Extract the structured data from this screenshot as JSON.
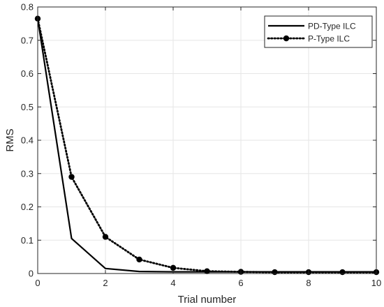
{
  "chart_data": {
    "type": "line",
    "xlabel": "Trial number",
    "ylabel": "RMS",
    "xlim": [
      0,
      10
    ],
    "ylim": [
      0,
      0.8
    ],
    "xticks": [
      "0",
      "2",
      "4",
      "6",
      "8",
      "10"
    ],
    "yticks": [
      "0",
      "0.1",
      "0.2",
      "0.3",
      "0.4",
      "0.5",
      "0.6",
      "0.7",
      "0.8"
    ],
    "grid": true,
    "legend_position": "top-right",
    "series": [
      {
        "name": "PD-Type ILC",
        "style": "solid",
        "marker": "none",
        "color": "#000000",
        "x": [
          0,
          1,
          2,
          3,
          4,
          5,
          6,
          7,
          8,
          9,
          10
        ],
        "y": [
          0.765,
          0.105,
          0.015,
          0.006,
          0.005,
          0.005,
          0.005,
          0.005,
          0.005,
          0.005,
          0.005
        ]
      },
      {
        "name": "P-Type ILC",
        "style": "dotted",
        "marker": "circle",
        "color": "#000000",
        "x": [
          0,
          1,
          2,
          3,
          4,
          5,
          6,
          7,
          8,
          9,
          10
        ],
        "y": [
          0.765,
          0.29,
          0.11,
          0.042,
          0.017,
          0.007,
          0.005,
          0.004,
          0.004,
          0.004,
          0.004
        ]
      }
    ]
  }
}
